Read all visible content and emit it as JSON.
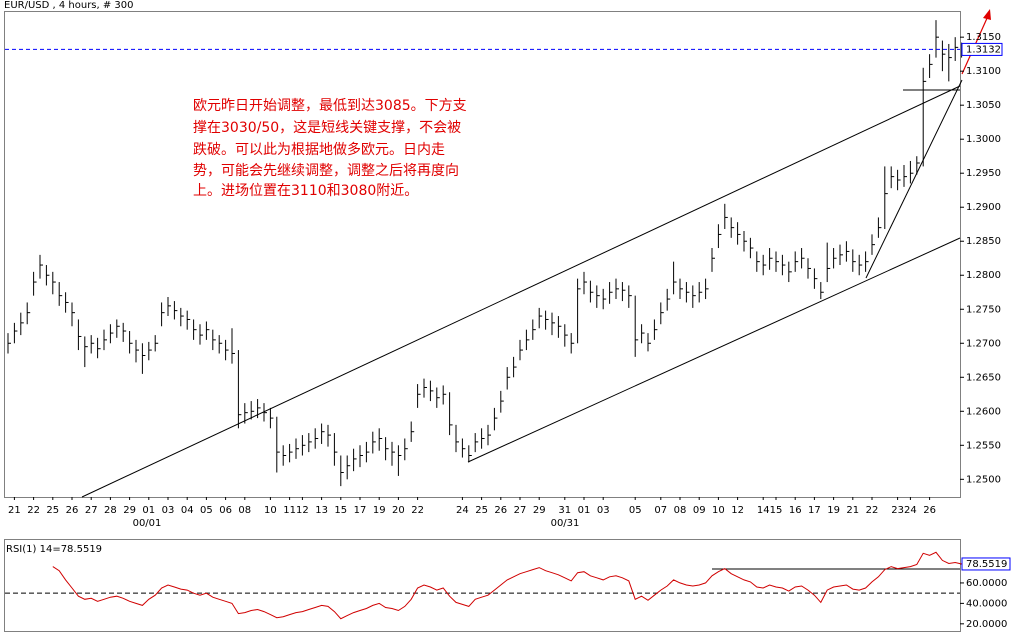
{
  "header": "EUR/USD , 4 hours, # 300",
  "annotation": [
    "欧元昨日开始调整，最低到达3085。下方支",
    "撑在3030/50，这是短线关键支撑，不会被",
    "跌破。可以此为根据地做多欧元。日内走",
    "势，可能会先继续调整，调整之后将再度向",
    "上。进场位置在3110和3080附近。"
  ],
  "chart_data": [
    {
      "type": "ohlc",
      "categories": [
        null,
        "21",
        null,
        null,
        "22",
        null,
        null,
        "25",
        null,
        null,
        "26",
        null,
        null,
        "27",
        null,
        null,
        "28",
        null,
        null,
        "29",
        null,
        null,
        "01",
        null,
        null,
        "03",
        null,
        null,
        "04",
        null,
        null,
        "05",
        null,
        null,
        "06",
        null,
        null,
        "08",
        null,
        null,
        null,
        "10",
        null,
        null,
        "11",
        null,
        "12",
        null,
        null,
        "13",
        null,
        null,
        "15",
        null,
        null,
        "17",
        null,
        null,
        "19",
        null,
        null,
        "20",
        null,
        null,
        "22",
        null,
        null,
        null,
        null,
        null,
        null,
        "24",
        null,
        null,
        "25",
        null,
        null,
        "26",
        null,
        null,
        "27",
        null,
        null,
        "29",
        null,
        null,
        null,
        "31",
        null,
        null,
        "01",
        null,
        null,
        "03",
        null,
        null,
        null,
        null,
        "05",
        null,
        null,
        null,
        "07",
        null,
        null,
        "08",
        null,
        null,
        "09",
        null,
        null,
        "10",
        null,
        null,
        "12",
        null,
        null,
        null,
        "14",
        null,
        "15",
        null,
        null,
        "16",
        null,
        null,
        "17",
        null,
        null,
        "19",
        null,
        null,
        "21",
        null,
        null,
        "22",
        null,
        null,
        null,
        "23",
        null,
        "24",
        null,
        null,
        "26",
        null,
        null,
        null,
        null,
        null
      ],
      "period_labels": [
        "00/01",
        "00/31"
      ],
      "high": [
        1.2715,
        1.273,
        1.2745,
        1.276,
        1.2805,
        1.283,
        1.2815,
        1.2805,
        1.279,
        1.2775,
        1.276,
        1.2735,
        1.271,
        1.2712,
        1.2708,
        1.272,
        1.2728,
        1.2735,
        1.273,
        1.2718,
        1.2705,
        1.27,
        1.2702,
        1.2712,
        1.276,
        1.2768,
        1.2762,
        1.2752,
        1.2748,
        1.2735,
        1.2728,
        1.2732,
        1.272,
        1.2712,
        1.2705,
        1.2722,
        1.269,
        1.2612,
        1.2615,
        1.2618,
        1.2612,
        1.2605,
        1.2592,
        1.255,
        1.2552,
        1.256,
        1.2565,
        1.2568,
        1.2575,
        1.2582,
        1.258,
        1.2568,
        1.2535,
        1.2535,
        1.2545,
        1.255,
        1.2555,
        1.257,
        1.2575,
        1.2562,
        1.2555,
        1.255,
        1.256,
        1.2585,
        1.264,
        1.2648,
        1.2645,
        1.2635,
        1.2638,
        1.2628,
        1.258,
        1.256,
        1.255,
        1.2568,
        1.2575,
        1.258,
        1.2605,
        1.263,
        1.2665,
        1.268,
        1.2705,
        1.272,
        1.2735,
        1.2752,
        1.2748,
        1.2745,
        1.274,
        1.2728,
        1.2715,
        1.2795,
        1.2805,
        1.2792,
        1.2785,
        1.278,
        1.279,
        1.2795,
        1.279,
        1.2785,
        1.277,
        1.2728,
        1.2715,
        1.2735,
        1.276,
        1.278,
        1.282,
        1.2795,
        1.279,
        1.2785,
        1.279,
        1.2795,
        1.284,
        1.2875,
        1.2905,
        1.2885,
        1.2878,
        1.2865,
        1.2855,
        1.2835,
        1.283,
        1.284,
        1.2835,
        1.283,
        1.282,
        1.2835,
        1.284,
        1.2825,
        1.281,
        1.279,
        1.2848,
        1.284,
        1.2845,
        1.285,
        1.2838,
        1.283,
        1.2835,
        1.286,
        1.2885,
        1.296,
        1.296,
        1.2955,
        1.2962,
        1.2968,
        1.2975,
        1.3105,
        1.3125,
        1.3175,
        1.3145,
        1.314,
        1.315,
        1.3142
      ],
      "low": [
        1.2685,
        1.27,
        1.2712,
        1.2728,
        1.277,
        1.2795,
        1.2785,
        1.2772,
        1.2755,
        1.2745,
        1.2725,
        1.269,
        1.2665,
        1.2685,
        1.2678,
        1.269,
        1.27,
        1.2708,
        1.2702,
        1.2685,
        1.2672,
        1.2655,
        1.2675,
        1.2688,
        1.2725,
        1.274,
        1.2735,
        1.2725,
        1.272,
        1.2705,
        1.2698,
        1.2705,
        1.269,
        1.2685,
        1.2675,
        1.267,
        1.2575,
        1.2582,
        1.2588,
        1.259,
        1.2585,
        1.2575,
        1.251,
        1.252,
        1.2525,
        1.253,
        1.2535,
        1.254,
        1.2545,
        1.2552,
        1.2548,
        1.252,
        1.249,
        1.25,
        1.2512,
        1.2518,
        1.2525,
        1.2538,
        1.2542,
        1.2528,
        1.252,
        1.2505,
        1.2528,
        1.2555,
        1.2605,
        1.262,
        1.2615,
        1.2605,
        1.261,
        1.2565,
        1.254,
        1.2532,
        1.2525,
        1.254,
        1.2545,
        1.255,
        1.2572,
        1.2598,
        1.2632,
        1.265,
        1.2675,
        1.269,
        1.2705,
        1.2722,
        1.272,
        1.2712,
        1.2708,
        1.2695,
        1.2685,
        1.27,
        1.2772,
        1.276,
        1.2752,
        1.275,
        1.2758,
        1.2765,
        1.2762,
        1.2752,
        1.268,
        1.27,
        1.2688,
        1.2705,
        1.2728,
        1.2748,
        1.2772,
        1.2765,
        1.276,
        1.2752,
        1.276,
        1.2765,
        1.2805,
        1.284,
        1.2868,
        1.2855,
        1.2845,
        1.2835,
        1.2825,
        1.2805,
        1.28,
        1.2808,
        1.2805,
        1.28,
        1.279,
        1.2805,
        1.281,
        1.2795,
        1.278,
        1.2765,
        1.279,
        1.281,
        1.2815,
        1.282,
        1.2805,
        1.28,
        1.2805,
        1.283,
        1.2855,
        1.2868,
        1.2928,
        1.2925,
        1.293,
        1.2935,
        1.2948,
        1.296,
        1.309,
        1.312,
        1.31,
        1.3085,
        1.3115,
        1.312
      ],
      "close": [
        1.27,
        1.2718,
        1.273,
        1.2745,
        1.279,
        1.2815,
        1.28,
        1.279,
        1.277,
        1.276,
        1.2745,
        1.271,
        1.2695,
        1.27,
        1.2692,
        1.2705,
        1.2715,
        1.2725,
        1.2718,
        1.27,
        1.269,
        1.2682,
        1.269,
        1.27,
        1.2745,
        1.2755,
        1.2748,
        1.274,
        1.2735,
        1.272,
        1.2712,
        1.272,
        1.2705,
        1.27,
        1.269,
        1.2685,
        1.2595,
        1.2598,
        1.26,
        1.2605,
        1.2598,
        1.259,
        1.254,
        1.2535,
        1.254,
        1.2545,
        1.255,
        1.2555,
        1.256,
        1.257,
        1.2565,
        1.254,
        1.251,
        1.252,
        1.253,
        1.2535,
        1.254,
        1.2555,
        1.256,
        1.2545,
        1.254,
        1.2535,
        1.2545,
        1.257,
        1.2625,
        1.2635,
        1.263,
        1.262,
        1.2625,
        1.258,
        1.2555,
        1.2545,
        1.2535,
        1.2555,
        1.256,
        1.2565,
        1.259,
        1.2615,
        1.265,
        1.2665,
        1.269,
        1.2705,
        1.272,
        1.274,
        1.2735,
        1.273,
        1.2725,
        1.2712,
        1.27,
        1.278,
        1.279,
        1.2775,
        1.277,
        1.2765,
        1.2775,
        1.278,
        1.2778,
        1.277,
        1.2705,
        1.2715,
        1.27,
        1.272,
        1.2745,
        1.2765,
        1.279,
        1.278,
        1.2775,
        1.277,
        1.2775,
        1.278,
        1.2825,
        1.286,
        1.2885,
        1.287,
        1.286,
        1.285,
        1.284,
        1.282,
        1.2815,
        1.2825,
        1.282,
        1.2815,
        1.2805,
        1.282,
        1.2825,
        1.281,
        1.2795,
        1.2775,
        1.281,
        1.2825,
        1.283,
        1.2835,
        1.282,
        1.2815,
        1.282,
        1.2845,
        1.287,
        1.292,
        1.2945,
        1.294,
        1.2945,
        1.295,
        1.2965,
        1.3085,
        1.311,
        1.315,
        1.3125,
        1.312,
        1.3135,
        1.3132
      ],
      "color": "#000000",
      "last_price": 1.3132,
      "last_price_color": "#0000ff",
      "ylim": [
        1.2474,
        1.3187
      ],
      "yticks": [
        {
          "value": 1.25,
          "label": "1.2500"
        },
        {
          "value": 1.255,
          "label": "1.2550"
        },
        {
          "value": 1.26,
          "label": "1.2600"
        },
        {
          "value": 1.265,
          "label": "1.2650"
        },
        {
          "value": 1.27,
          "label": "1.2700"
        },
        {
          "value": 1.275,
          "label": "1.2750"
        },
        {
          "value": 1.28,
          "label": "1.2800"
        },
        {
          "value": 1.285,
          "label": "1.2850"
        },
        {
          "value": 1.29,
          "label": "1.2900"
        },
        {
          "value": 1.295,
          "label": "1.2950"
        },
        {
          "value": 1.3,
          "label": "1.3000"
        },
        {
          "value": 1.305,
          "label": "1.3050"
        },
        {
          "value": 1.31,
          "label": "1.3100"
        },
        {
          "value": 1.315,
          "label": "1.3150"
        }
      ]
    },
    {
      "type": "line",
      "title": "RSI(1) 14=78.5519",
      "color": "#d00000",
      "values": [
        null,
        null,
        null,
        null,
        null,
        null,
        null,
        76,
        72,
        63,
        55,
        47,
        44,
        45,
        42,
        44,
        46,
        47,
        45,
        42,
        40,
        38,
        44,
        48,
        55,
        58,
        56,
        54,
        53,
        50,
        48,
        50,
        46,
        44,
        42,
        40,
        30,
        31,
        33,
        34,
        32,
        29,
        26,
        27,
        29,
        31,
        32,
        34,
        36,
        38,
        37,
        32,
        25,
        28,
        31,
        33,
        35,
        38,
        40,
        36,
        35,
        33,
        37,
        44,
        55,
        58,
        56,
        53,
        55,
        47,
        41,
        39,
        37,
        44,
        46,
        48,
        53,
        58,
        63,
        66,
        69,
        71,
        73,
        75,
        72,
        70,
        68,
        65,
        62,
        70,
        71,
        67,
        65,
        63,
        66,
        67,
        65,
        62,
        44,
        47,
        43,
        48,
        53,
        57,
        63,
        60,
        58,
        57,
        58,
        60,
        67,
        71,
        74,
        69,
        66,
        63,
        61,
        56,
        55,
        58,
        56,
        55,
        52,
        56,
        57,
        53,
        48,
        41,
        53,
        56,
        57,
        58,
        54,
        53,
        55,
        61,
        66,
        73,
        76,
        74,
        75,
        76,
        78,
        89,
        87,
        90,
        82,
        79,
        80,
        78.5519
      ],
      "reference_level": 50,
      "ylim": [
        12,
        102
      ],
      "yticks": [
        {
          "value": 20,
          "label": "20.0000"
        },
        {
          "value": 40,
          "label": "40.0000"
        },
        {
          "value": 60,
          "label": "60.0000"
        },
        {
          "value": 78.5519,
          "label": "78.5519"
        }
      ]
    }
  ]
}
